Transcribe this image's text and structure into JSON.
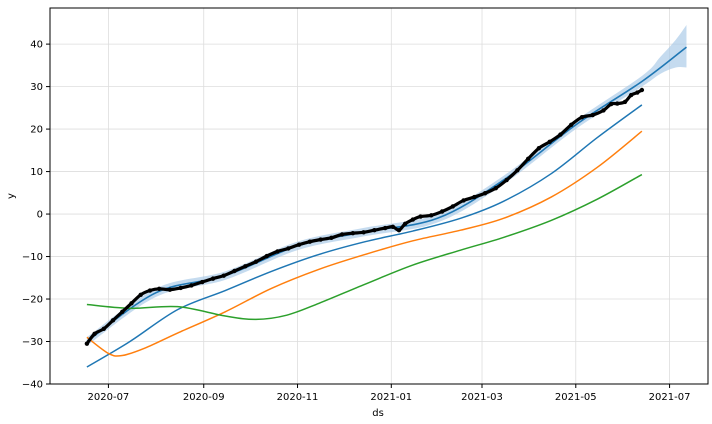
{
  "chart_data": {
    "type": "line",
    "xlabel": "ds",
    "ylabel": "y",
    "x_tick_labels": [
      "2020-07",
      "2020-09",
      "2020-11",
      "2021-01",
      "2021-03",
      "2021-05",
      "2021-07"
    ],
    "y_ticks": [
      -40,
      -30,
      -20,
      -10,
      0,
      10,
      20,
      30,
      40
    ],
    "xlim": [
      "2020-05-24",
      "2021-07-26"
    ],
    "ylim": [
      -40,
      48.5
    ],
    "grid": true,
    "colors": {
      "forecast": "#1f77b4",
      "uncertainty_band": "#a6c8e6",
      "observed": "#000000",
      "series_a": "#1f77b4",
      "series_b": "#ff7f0e",
      "series_c": "#2ca02c"
    },
    "series": [
      {
        "kind": "observed_points",
        "points": [
          [
            "2020-06-17",
            -30.5
          ],
          [
            "2020-06-22",
            -28.2
          ],
          [
            "2020-06-28",
            -27.0
          ],
          [
            "2020-07-04",
            -25.0
          ],
          [
            "2020-07-10",
            -23.0
          ],
          [
            "2020-07-16",
            -21.0
          ],
          [
            "2020-07-22",
            -19.0
          ],
          [
            "2020-07-28",
            -18.0
          ],
          [
            "2020-08-03",
            -17.6
          ],
          [
            "2020-08-10",
            -17.8
          ],
          [
            "2020-08-17",
            -17.4
          ],
          [
            "2020-08-24",
            -16.8
          ],
          [
            "2020-08-31",
            -16.0
          ],
          [
            "2020-09-07",
            -15.2
          ],
          [
            "2020-09-14",
            -14.5
          ],
          [
            "2020-09-21",
            -13.4
          ],
          [
            "2020-09-28",
            -12.3
          ],
          [
            "2020-10-05",
            -11.2
          ],
          [
            "2020-10-12",
            -9.9
          ],
          [
            "2020-10-19",
            -8.8
          ],
          [
            "2020-10-26",
            -8.1
          ],
          [
            "2020-11-02",
            -7.2
          ],
          [
            "2020-11-09",
            -6.5
          ],
          [
            "2020-11-16",
            -6.0
          ],
          [
            "2020-11-23",
            -5.6
          ],
          [
            "2020-11-30",
            -4.8
          ],
          [
            "2020-12-07",
            -4.5
          ],
          [
            "2020-12-14",
            -4.3
          ],
          [
            "2020-12-21",
            -3.8
          ],
          [
            "2020-12-28",
            -3.3
          ],
          [
            "2021-01-02",
            -3.0
          ],
          [
            "2021-01-06",
            -3.8
          ],
          [
            "2021-01-10",
            -2.3
          ],
          [
            "2021-01-15",
            -1.3
          ],
          [
            "2021-01-20",
            -0.6
          ],
          [
            "2021-01-27",
            -0.3
          ],
          [
            "2021-02-03",
            0.6
          ],
          [
            "2021-02-10",
            1.8
          ],
          [
            "2021-02-17",
            3.2
          ],
          [
            "2021-02-24",
            4.0
          ],
          [
            "2021-03-03",
            4.9
          ],
          [
            "2021-03-10",
            6.1
          ],
          [
            "2021-03-17",
            8.0
          ],
          [
            "2021-03-24",
            10.3
          ],
          [
            "2021-03-31",
            13.0
          ],
          [
            "2021-04-07",
            15.5
          ],
          [
            "2021-04-14",
            17.0
          ],
          [
            "2021-04-21",
            18.7
          ],
          [
            "2021-04-28",
            21.0
          ],
          [
            "2021-05-05",
            22.8
          ],
          [
            "2021-05-12",
            23.3
          ],
          [
            "2021-05-19",
            24.4
          ],
          [
            "2021-05-24",
            25.9
          ],
          [
            "2021-05-28",
            26.0
          ],
          [
            "2021-06-02",
            26.4
          ],
          [
            "2021-06-06",
            28.0
          ],
          [
            "2021-06-10",
            28.6
          ],
          [
            "2021-06-13",
            29.2
          ]
        ]
      },
      {
        "kind": "uncertainty_band",
        "points": [
          [
            "2020-06-17",
            -29.0,
            -31.0
          ],
          [
            "2020-08-01",
            -17.5,
            -19.5
          ],
          [
            "2020-09-15",
            -13.5,
            -15.5
          ],
          [
            "2020-11-01",
            -6.5,
            -8.5
          ],
          [
            "2020-12-15",
            -3.2,
            -5.2
          ],
          [
            "2021-01-31",
            0.0,
            -2.0
          ],
          [
            "2021-03-15",
            9.0,
            7.0
          ],
          [
            "2021-05-01",
            22.0,
            20.0
          ],
          [
            "2021-06-13",
            32.5,
            30.0
          ],
          [
            "2021-06-25",
            37.0,
            33.0
          ],
          [
            "2021-07-05",
            41.0,
            34.5
          ],
          [
            "2021-07-12",
            44.5,
            34.5
          ]
        ]
      },
      {
        "kind": "forecast_line",
        "points": [
          [
            "2020-06-17",
            -30.0
          ],
          [
            "2020-08-01",
            -18.5
          ],
          [
            "2020-09-15",
            -14.5
          ],
          [
            "2020-11-01",
            -7.5
          ],
          [
            "2020-12-15",
            -4.2
          ],
          [
            "2021-01-31",
            -1.0
          ],
          [
            "2021-03-15",
            8.0
          ],
          [
            "2021-05-01",
            21.0
          ],
          [
            "2021-06-13",
            31.2
          ],
          [
            "2021-07-12",
            39.3
          ]
        ]
      },
      {
        "kind": "line",
        "color_key": "series_a",
        "points": [
          [
            "2020-06-17",
            -36.0
          ],
          [
            "2020-07-15",
            -30.0
          ],
          [
            "2020-08-15",
            -22.5
          ],
          [
            "2020-09-15",
            -18.0
          ],
          [
            "2020-10-15",
            -13.5
          ],
          [
            "2020-11-15",
            -9.5
          ],
          [
            "2020-12-15",
            -6.5
          ],
          [
            "2021-01-15",
            -4.0
          ],
          [
            "2021-02-15",
            -1.0
          ],
          [
            "2021-03-15",
            3.0
          ],
          [
            "2021-04-15",
            9.5
          ],
          [
            "2021-05-15",
            18.0
          ],
          [
            "2021-06-13",
            25.7
          ]
        ]
      },
      {
        "kind": "line",
        "color_key": "series_b",
        "points": [
          [
            "2020-06-17",
            -29.0
          ],
          [
            "2020-07-01",
            -32.8
          ],
          [
            "2020-07-10",
            -33.3
          ],
          [
            "2020-07-25",
            -31.5
          ],
          [
            "2020-08-15",
            -28.0
          ],
          [
            "2020-09-15",
            -23.0
          ],
          [
            "2020-10-15",
            -17.5
          ],
          [
            "2020-11-15",
            -13.0
          ],
          [
            "2020-12-15",
            -9.5
          ],
          [
            "2021-01-15",
            -6.3
          ],
          [
            "2021-02-15",
            -3.8
          ],
          [
            "2021-03-15",
            -1.0
          ],
          [
            "2021-04-15",
            4.0
          ],
          [
            "2021-05-15",
            11.0
          ],
          [
            "2021-06-13",
            19.5
          ]
        ]
      },
      {
        "kind": "line",
        "color_key": "series_c",
        "points": [
          [
            "2020-06-17",
            -21.3
          ],
          [
            "2020-07-15",
            -22.2
          ],
          [
            "2020-08-15",
            -21.8
          ],
          [
            "2020-09-15",
            -24.0
          ],
          [
            "2020-10-05",
            -24.8
          ],
          [
            "2020-10-25",
            -23.8
          ],
          [
            "2020-11-15",
            -21.0
          ],
          [
            "2020-12-15",
            -16.5
          ],
          [
            "2021-01-15",
            -12.0
          ],
          [
            "2021-02-15",
            -8.5
          ],
          [
            "2021-03-15",
            -5.5
          ],
          [
            "2021-04-15",
            -1.5
          ],
          [
            "2021-05-15",
            3.5
          ],
          [
            "2021-06-13",
            9.3
          ]
        ]
      }
    ]
  }
}
